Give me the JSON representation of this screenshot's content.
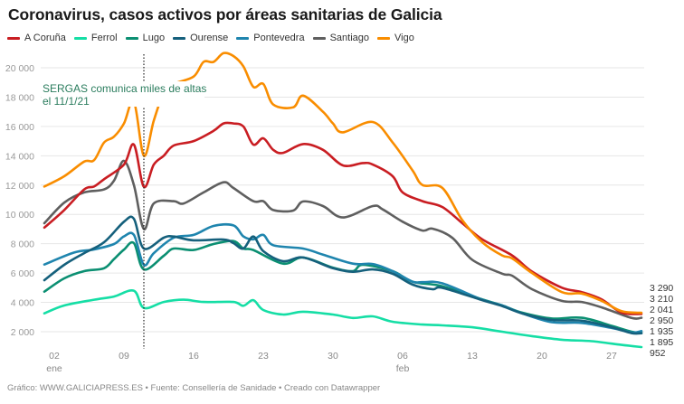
{
  "chart_data": {
    "type": "line",
    "title": "Coronavirus, casos activos por áreas sanitarias de Galicia",
    "xlabel": "",
    "ylabel": "",
    "ylim": [
      0,
      21000
    ],
    "grid": true,
    "legend": "top-left",
    "y_ticks": [
      2000,
      4000,
      6000,
      8000,
      10000,
      12000,
      14000,
      16000,
      18000,
      20000
    ],
    "y_tick_labels": [
      "2 000",
      "4 000",
      "6 000",
      "8 000",
      "10 000",
      "12 000",
      "14 000",
      "16 000",
      "18 000",
      "20 000"
    ],
    "x_ticks": [
      {
        "date": "01-02",
        "label": "02",
        "sub": "ene"
      },
      {
        "date": "01-09",
        "label": "09",
        "sub": ""
      },
      {
        "date": "01-16",
        "label": "16",
        "sub": ""
      },
      {
        "date": "01-23",
        "label": "23",
        "sub": ""
      },
      {
        "date": "01-30",
        "label": "30",
        "sub": ""
      },
      {
        "date": "02-06",
        "label": "06",
        "sub": "feb"
      },
      {
        "date": "02-13",
        "label": "13",
        "sub": ""
      },
      {
        "date": "02-20",
        "label": "20",
        "sub": ""
      },
      {
        "date": "02-27",
        "label": "27",
        "sub": ""
      }
    ],
    "annotation": {
      "date": "01-11",
      "line1": "SERGAS comunica miles de altas",
      "line2": "el 11/1/21",
      "color": "#2b7d5e"
    },
    "end_labels": [
      "3 290",
      "3 210",
      "2 041",
      "2 950",
      "1 935",
      "1 895",
      "952"
    ],
    "series": [
      {
        "name": "A Coruña",
        "color": "#c91d22",
        "points": [
          [
            "01-01",
            9100
          ],
          [
            "01-03",
            10300
          ],
          [
            "01-05",
            11700
          ],
          [
            "01-06",
            11900
          ],
          [
            "01-07",
            12400
          ],
          [
            "01-09",
            13400
          ],
          [
            "01-10",
            14760
          ],
          [
            "01-11",
            11880
          ],
          [
            "01-12",
            13400
          ],
          [
            "01-13",
            14000
          ],
          [
            "01-14",
            14700
          ],
          [
            "01-16",
            15000
          ],
          [
            "01-18",
            15700
          ],
          [
            "01-19",
            16200
          ],
          [
            "01-20",
            16200
          ],
          [
            "01-21",
            16000
          ],
          [
            "01-22",
            14760
          ],
          [
            "01-23",
            15190
          ],
          [
            "01-24",
            14400
          ],
          [
            "01-25",
            14200
          ],
          [
            "01-27",
            14800
          ],
          [
            "01-29",
            14400
          ],
          [
            "01-31",
            13340
          ],
          [
            "02-02",
            13500
          ],
          [
            "02-03",
            13400
          ],
          [
            "02-05",
            12600
          ],
          [
            "02-06",
            11500
          ],
          [
            "02-08",
            10900
          ],
          [
            "02-10",
            10500
          ],
          [
            "02-12",
            9400
          ],
          [
            "02-14",
            8300
          ],
          [
            "02-17",
            7200
          ],
          [
            "02-19",
            6100
          ],
          [
            "02-22",
            5000
          ],
          [
            "02-24",
            4700
          ],
          [
            "02-26",
            4200
          ],
          [
            "02-28",
            3300
          ],
          [
            "03-02",
            3210
          ]
        ]
      },
      {
        "name": "Ferrol",
        "color": "#15dea5",
        "points": [
          [
            "01-01",
            3250
          ],
          [
            "01-03",
            3790
          ],
          [
            "01-06",
            4180
          ],
          [
            "01-08",
            4400
          ],
          [
            "01-10",
            4790
          ],
          [
            "01-11",
            3620
          ],
          [
            "01-13",
            4030
          ],
          [
            "01-15",
            4180
          ],
          [
            "01-17",
            4030
          ],
          [
            "01-20",
            4030
          ],
          [
            "01-21",
            3770
          ],
          [
            "01-22",
            4150
          ],
          [
            "01-23",
            3480
          ],
          [
            "01-25",
            3170
          ],
          [
            "01-27",
            3360
          ],
          [
            "01-30",
            3170
          ],
          [
            "02-01",
            2940
          ],
          [
            "02-03",
            3050
          ],
          [
            "02-05",
            2680
          ],
          [
            "02-08",
            2490
          ],
          [
            "02-10",
            2430
          ],
          [
            "02-13",
            2300
          ],
          [
            "02-16",
            2000
          ],
          [
            "02-19",
            1700
          ],
          [
            "02-22",
            1450
          ],
          [
            "02-25",
            1350
          ],
          [
            "02-28",
            1100
          ],
          [
            "03-02",
            952
          ]
        ]
      },
      {
        "name": "Lugo",
        "color": "#0b8f72",
        "points": [
          [
            "01-01",
            4730
          ],
          [
            "01-03",
            5640
          ],
          [
            "01-05",
            6130
          ],
          [
            "01-07",
            6330
          ],
          [
            "01-08",
            6950
          ],
          [
            "01-09",
            7600
          ],
          [
            "01-10",
            8040
          ],
          [
            "01-11",
            6250
          ],
          [
            "01-13",
            7180
          ],
          [
            "01-14",
            7670
          ],
          [
            "01-16",
            7570
          ],
          [
            "01-18",
            7980
          ],
          [
            "01-20",
            8180
          ],
          [
            "01-21",
            7670
          ],
          [
            "01-22",
            7570
          ],
          [
            "01-25",
            6640
          ],
          [
            "01-27",
            7060
          ],
          [
            "01-30",
            6370
          ],
          [
            "02-01",
            6130
          ],
          [
            "02-02",
            6560
          ],
          [
            "02-05",
            6130
          ],
          [
            "02-07",
            5410
          ],
          [
            "02-10",
            5100
          ],
          [
            "02-14",
            4200
          ],
          [
            "02-16",
            3800
          ],
          [
            "02-18",
            3300
          ],
          [
            "02-21",
            2900
          ],
          [
            "02-24",
            2950
          ],
          [
            "02-27",
            2400
          ],
          [
            "03-01",
            2000
          ],
          [
            "03-02",
            1935
          ]
        ]
      },
      {
        "name": "Ourense",
        "color": "#15607c",
        "points": [
          [
            "01-01",
            5510
          ],
          [
            "01-03",
            6560
          ],
          [
            "01-05",
            7360
          ],
          [
            "01-07",
            8100
          ],
          [
            "01-09",
            9500
          ],
          [
            "01-10",
            9700
          ],
          [
            "01-11",
            7670
          ],
          [
            "01-13",
            8410
          ],
          [
            "01-14",
            8490
          ],
          [
            "01-16",
            8230
          ],
          [
            "01-19",
            8290
          ],
          [
            "01-20",
            8040
          ],
          [
            "01-21",
            7670
          ],
          [
            "01-22",
            8490
          ],
          [
            "01-23",
            7490
          ],
          [
            "01-25",
            6810
          ],
          [
            "01-27",
            7060
          ],
          [
            "01-30",
            6330
          ],
          [
            "02-01",
            6090
          ],
          [
            "02-03",
            6250
          ],
          [
            "02-05",
            5950
          ],
          [
            "02-07",
            5210
          ],
          [
            "02-09",
            4900
          ],
          [
            "02-10",
            4990
          ],
          [
            "02-14",
            4150
          ],
          [
            "02-16",
            3750
          ],
          [
            "02-18",
            3250
          ],
          [
            "02-21",
            2800
          ],
          [
            "02-24",
            2750
          ],
          [
            "02-27",
            2300
          ],
          [
            "03-01",
            1900
          ],
          [
            "03-02",
            1895
          ]
        ]
      },
      {
        "name": "Pontevedra",
        "color": "#1f85ae",
        "points": [
          [
            "01-01",
            6580
          ],
          [
            "01-04",
            7400
          ],
          [
            "01-06",
            7610
          ],
          [
            "01-08",
            7980
          ],
          [
            "01-09",
            8500
          ],
          [
            "01-10",
            8600
          ],
          [
            "01-11",
            6560
          ],
          [
            "01-12",
            7360
          ],
          [
            "01-14",
            8410
          ],
          [
            "01-16",
            8600
          ],
          [
            "01-18",
            9210
          ],
          [
            "01-20",
            9250
          ],
          [
            "01-21",
            8500
          ],
          [
            "01-22",
            8300
          ],
          [
            "01-23",
            8600
          ],
          [
            "01-24",
            7900
          ],
          [
            "01-27",
            7670
          ],
          [
            "01-29",
            7260
          ],
          [
            "02-01",
            6640
          ],
          [
            "02-03",
            6620
          ],
          [
            "02-05",
            6130
          ],
          [
            "02-07",
            5410
          ],
          [
            "02-08",
            5380
          ],
          [
            "02-10",
            5300
          ],
          [
            "02-14",
            4180
          ],
          [
            "02-16",
            3790
          ],
          [
            "02-18",
            3250
          ],
          [
            "02-21",
            2650
          ],
          [
            "02-24",
            2600
          ],
          [
            "02-27",
            2250
          ],
          [
            "03-01",
            1950
          ],
          [
            "03-02",
            2041
          ]
        ]
      },
      {
        "name": "Santiago",
        "color": "#5f5f5f",
        "points": [
          [
            "01-01",
            9400
          ],
          [
            "01-03",
            10800
          ],
          [
            "01-05",
            11500
          ],
          [
            "01-07",
            11700
          ],
          [
            "01-08",
            12300
          ],
          [
            "01-09",
            13650
          ],
          [
            "01-10",
            12000
          ],
          [
            "01-11",
            9000
          ],
          [
            "01-12",
            10750
          ],
          [
            "01-14",
            10900
          ],
          [
            "01-15",
            10750
          ],
          [
            "01-17",
            11500
          ],
          [
            "01-19",
            12190
          ],
          [
            "01-20",
            11800
          ],
          [
            "01-22",
            10900
          ],
          [
            "01-23",
            10900
          ],
          [
            "01-24",
            10300
          ],
          [
            "01-26",
            10260
          ],
          [
            "01-27",
            10880
          ],
          [
            "01-29",
            10570
          ],
          [
            "01-31",
            9790
          ],
          [
            "02-03",
            10570
          ],
          [
            "02-04",
            10340
          ],
          [
            "02-06",
            9500
          ],
          [
            "02-08",
            8900
          ],
          [
            "02-09",
            9030
          ],
          [
            "02-11",
            8400
          ],
          [
            "02-13",
            6900
          ],
          [
            "02-16",
            5960
          ],
          [
            "02-17",
            5820
          ],
          [
            "02-19",
            4900
          ],
          [
            "02-22",
            4100
          ],
          [
            "02-24",
            4030
          ],
          [
            "02-26",
            3660
          ],
          [
            "03-01",
            2940
          ],
          [
            "03-02",
            2950
          ]
        ]
      },
      {
        "name": "Vigo",
        "color": "#f98d00",
        "points": [
          [
            "01-01",
            11900
          ],
          [
            "01-03",
            12600
          ],
          [
            "01-05",
            13600
          ],
          [
            "01-06",
            13700
          ],
          [
            "01-07",
            14900
          ],
          [
            "01-08",
            15300
          ],
          [
            "01-09",
            16200
          ],
          [
            "01-10",
            17700
          ],
          [
            "01-11",
            14000
          ],
          [
            "01-12",
            16400
          ],
          [
            "01-13",
            18300
          ],
          [
            "01-14",
            18900
          ],
          [
            "01-16",
            19400
          ],
          [
            "01-17",
            20400
          ],
          [
            "01-18",
            20400
          ],
          [
            "01-19",
            21000
          ],
          [
            "01-20",
            20800
          ],
          [
            "01-21",
            20100
          ],
          [
            "01-22",
            18700
          ],
          [
            "01-23",
            18900
          ],
          [
            "01-24",
            17500
          ],
          [
            "01-26",
            17300
          ],
          [
            "01-27",
            18100
          ],
          [
            "01-29",
            17000
          ],
          [
            "01-30",
            16200
          ],
          [
            "01-31",
            15600
          ],
          [
            "02-03",
            16300
          ],
          [
            "02-05",
            14900
          ],
          [
            "02-07",
            13000
          ],
          [
            "02-08",
            12000
          ],
          [
            "02-10",
            11800
          ],
          [
            "02-12",
            9600
          ],
          [
            "02-14",
            8100
          ],
          [
            "02-16",
            7200
          ],
          [
            "02-17",
            7000
          ],
          [
            "02-19",
            6000
          ],
          [
            "02-22",
            4700
          ],
          [
            "02-24",
            4600
          ],
          [
            "02-26",
            4100
          ],
          [
            "02-28",
            3400
          ],
          [
            "03-02",
            3290
          ]
        ]
      }
    ]
  },
  "footer": "Gráfico: WWW.GALICIAPRESS.ES • Fuente: Consellería de Sanidade • Creado con Datawrapper"
}
